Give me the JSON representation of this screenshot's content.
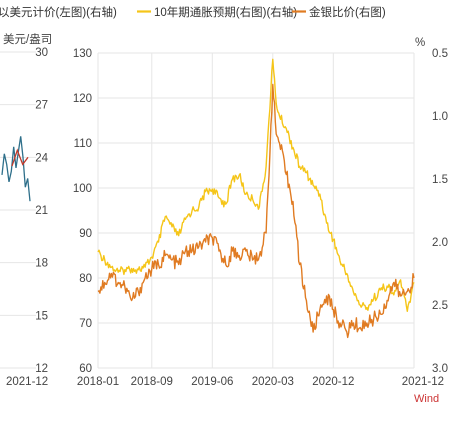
{
  "chart_data": [
    {
      "type": "line",
      "title": "",
      "unit_label": "美元/盎司",
      "x_tick_labels": [
        "2021-12"
      ],
      "y_tick_labels": [
        "30",
        "27",
        "24",
        "21",
        "18",
        "15",
        "12"
      ],
      "ylim": [
        12,
        30
      ],
      "grid": true,
      "series": [
        {
          "color": "#2e6f8a",
          "x": [
            "2021-10",
            "2021-10",
            "2021-10",
            "2021-10",
            "2021-11",
            "2021-11",
            "2021-11",
            "2021-11",
            "2021-11",
            "2021-11",
            "2021-12",
            "2021-12",
            "2021-12"
          ],
          "values": [
            23.0,
            24.2,
            23.6,
            22.6,
            23.2,
            24.6,
            23.4,
            24.3,
            25.2,
            24.0,
            22.3,
            22.8,
            21.5
          ]
        },
        {
          "color": "#c0392b",
          "x": [
            "2021-11",
            "2021-11",
            "2021-12",
            "2021-12"
          ],
          "values": [
            23.5,
            24.4,
            23.6,
            24.0
          ]
        }
      ]
    },
    {
      "type": "line",
      "title": "",
      "legend": [
        {
          "label": "以美元计价(左图)(右轴)",
          "color": ""
        },
        {
          "label": "10年期通胀预期(右图)(右轴)",
          "color": "#f5c518"
        },
        {
          "label": "金银比价(右图)",
          "color": "#e07b22"
        }
      ],
      "legend_position": "top",
      "left_axis": {
        "ticks": [
          "130",
          "120",
          "110",
          "100",
          "90",
          "80",
          "70",
          "60"
        ],
        "range": [
          60,
          130
        ]
      },
      "right_axis": {
        "unit": "%",
        "ticks": [
          "0.5",
          "1.0",
          "1.5",
          "2.0",
          "2.5",
          "3.0"
        ],
        "range": [
          0.5,
          3.0
        ],
        "inverted": true
      },
      "x_tick_labels": [
        "2018-01",
        "2018-09",
        "2019-06",
        "2020-03",
        "2020-12",
        "2021-12"
      ],
      "grid": true,
      "source": "Wind",
      "series": [
        {
          "name": "10年期通胀预期(右图)(右轴)",
          "color": "#f5c518",
          "axis": "right",
          "x": [
            "2018-01",
            "2018-02",
            "2018-03",
            "2018-04",
            "2018-05",
            "2018-06",
            "2018-07",
            "2018-08",
            "2018-09",
            "2018-10",
            "2018-11",
            "2018-12",
            "2019-01",
            "2019-02",
            "2019-03",
            "2019-04",
            "2019-05",
            "2019-06",
            "2019-07",
            "2019-08",
            "2019-09",
            "2019-10",
            "2019-11",
            "2019-12",
            "2020-01",
            "2020-02",
            "2020-03",
            "2020-03",
            "2020-04",
            "2020-05",
            "2020-06",
            "2020-07",
            "2020-08",
            "2020-09",
            "2020-10",
            "2020-11",
            "2020-12",
            "2021-01",
            "2021-02",
            "2021-03",
            "2021-04",
            "2021-05",
            "2021-06",
            "2021-07",
            "2021-08",
            "2021-09",
            "2021-10",
            "2021-11",
            "2021-12"
          ],
          "values": [
            2.08,
            2.14,
            2.2,
            2.24,
            2.22,
            2.21,
            2.22,
            2.2,
            2.12,
            2.0,
            1.8,
            1.88,
            1.95,
            1.82,
            1.75,
            1.72,
            1.6,
            1.58,
            1.65,
            1.7,
            1.5,
            1.47,
            1.62,
            1.66,
            1.72,
            1.4,
            0.55,
            0.9,
            1.0,
            1.1,
            1.25,
            1.4,
            1.45,
            1.55,
            1.62,
            1.85,
            1.98,
            2.15,
            2.25,
            2.4,
            2.5,
            2.52,
            2.45,
            2.38,
            2.35,
            2.42,
            2.3,
            2.55,
            2.32
          ]
        },
        {
          "name": "金银比价(右图)",
          "color": "#e07b22",
          "axis": "left",
          "x": [
            "2018-01",
            "2018-02",
            "2018-03",
            "2018-04",
            "2018-05",
            "2018-06",
            "2018-07",
            "2018-08",
            "2018-09",
            "2018-10",
            "2018-11",
            "2018-12",
            "2019-01",
            "2019-02",
            "2019-03",
            "2019-04",
            "2019-05",
            "2019-06",
            "2019-07",
            "2019-08",
            "2019-09",
            "2019-10",
            "2019-11",
            "2019-12",
            "2020-01",
            "2020-02",
            "2020-03",
            "2020-03",
            "2020-04",
            "2020-05",
            "2020-06",
            "2020-07",
            "2020-08",
            "2020-09",
            "2020-10",
            "2020-11",
            "2020-12",
            "2021-01",
            "2021-02",
            "2021-03",
            "2021-04",
            "2021-05",
            "2021-06",
            "2021-07",
            "2021-08",
            "2021-09",
            "2021-10",
            "2021-11",
            "2021-12"
          ],
          "values": [
            77,
            79,
            81,
            79,
            78,
            75,
            77,
            80,
            82,
            83,
            85,
            84,
            83,
            86,
            86,
            87,
            88,
            89,
            86,
            83,
            86,
            85,
            86,
            84,
            85,
            90,
            123,
            112,
            110,
            103,
            97,
            83,
            75,
            68,
            73,
            76,
            73,
            70,
            68,
            70,
            69,
            70,
            71,
            72,
            75,
            79,
            76,
            77,
            80
          ]
        }
      ]
    }
  ]
}
